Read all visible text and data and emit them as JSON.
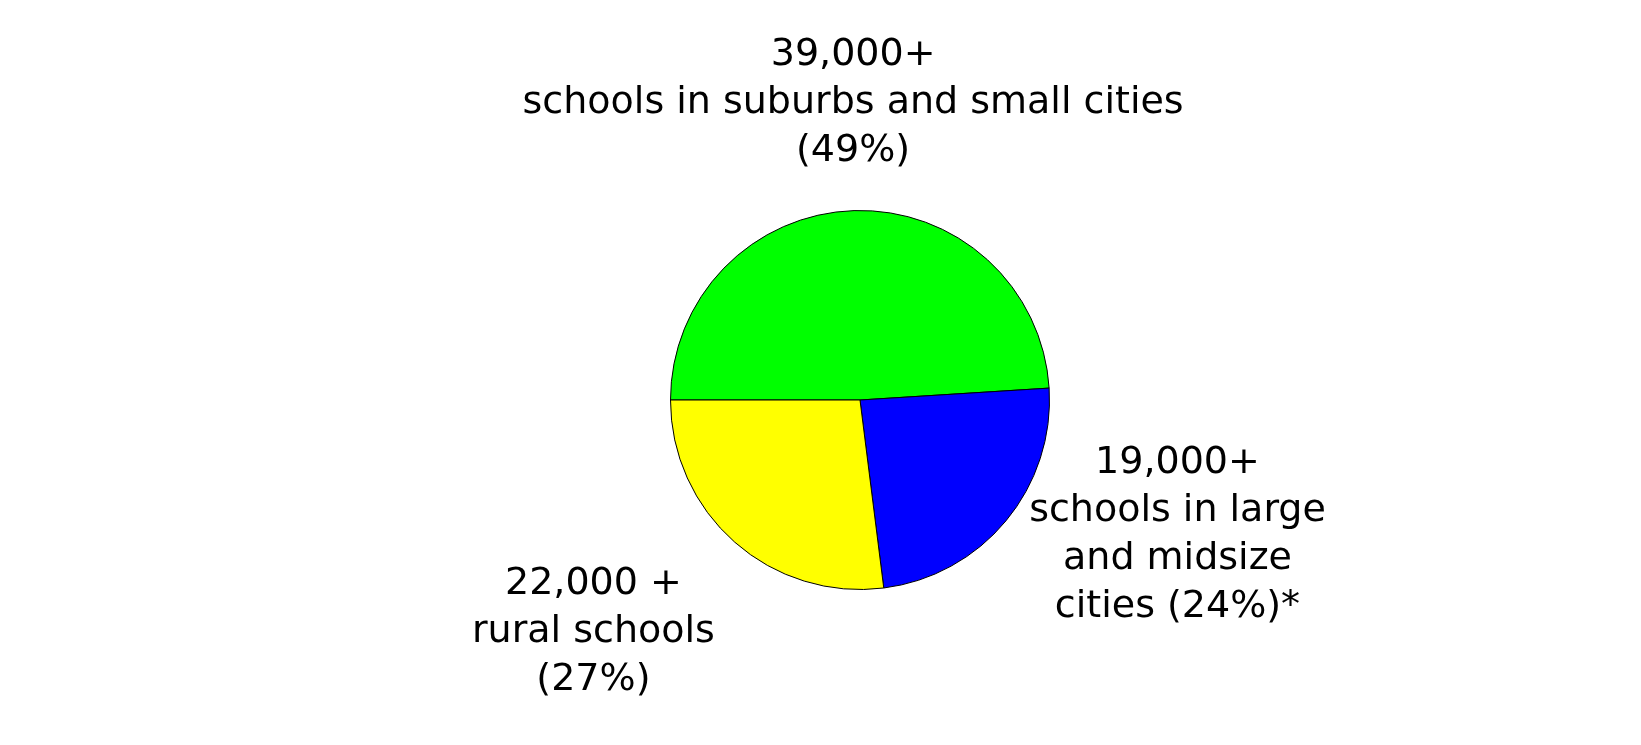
{
  "chart_data": {
    "type": "pie",
    "categories": [
      "39,000+\nschools in suburbs and small cities\n(49%)",
      "19,000+\nschools in large\nand midsize\ncities (24%)*",
      "22,000 +\nrural schools\n(27%)"
    ],
    "values": [
      49,
      24,
      27
    ],
    "colors": [
      "#00ff00",
      "#0000ff",
      "#ffff00"
    ]
  }
}
